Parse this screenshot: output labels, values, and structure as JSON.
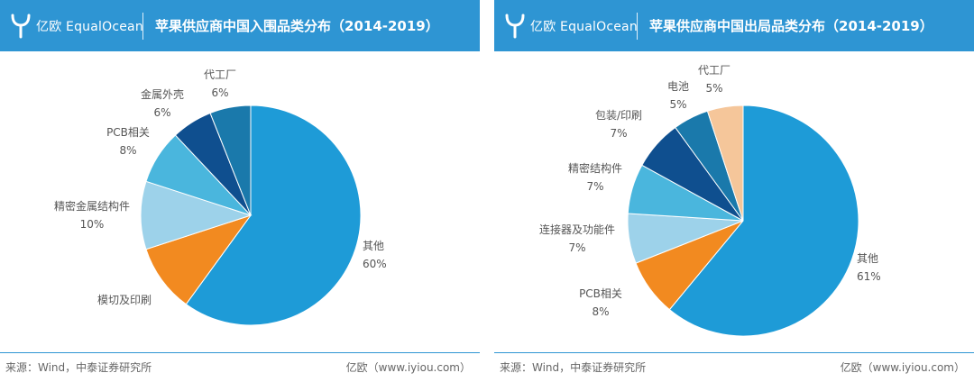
{
  "brand": {
    "name": "亿欧 EqualOcean"
  },
  "panels": [
    {
      "title": "苹果供应商中国入围品类分布（2014-2019）",
      "source": "来源：Wind，中泰证券研究所",
      "credit": "亿欧（www.iyiou.com）"
    },
    {
      "title": "苹果供应商中国出局品类分布（2014-2019）",
      "source": "来源：Wind，中泰证券研究所",
      "credit": "亿欧（www.iyiou.com）"
    }
  ],
  "colors": {
    "header": "#2e95d3",
    "slice_main": "#1e9bd7",
    "slice_orange": "#f28a20",
    "slice_pale": "#9dd2ea",
    "slice_light": "#4ab6dd",
    "slice_dark": "#0f4f8f",
    "slice_teal": "#1a79ab",
    "slice_peach": "#f5c69a"
  },
  "chart_data": [
    {
      "type": "pie",
      "title": "苹果供应商中国入围品类分布（2014-2019）",
      "slices": [
        {
          "label": "其他",
          "value": 60,
          "value_label": "60%",
          "color": "#1e9bd7"
        },
        {
          "label": "模切及印刷",
          "value": 10,
          "value_label": "",
          "color": "#f28a20"
        },
        {
          "label": "精密金属结构件",
          "value": 10,
          "value_label": "10%",
          "color": "#9dd2ea"
        },
        {
          "label": "PCB相关",
          "value": 8,
          "value_label": "8%",
          "color": "#4ab6dd"
        },
        {
          "label": "金属外壳",
          "value": 6,
          "value_label": "6%",
          "color": "#0f4f8f"
        },
        {
          "label": "代工厂",
          "value": 6,
          "value_label": "6%",
          "color": "#1a79ab"
        }
      ]
    },
    {
      "type": "pie",
      "title": "苹果供应商中国出局品类分布（2014-2019）",
      "slices": [
        {
          "label": "其他",
          "value": 61,
          "value_label": "61%",
          "color": "#1e9bd7"
        },
        {
          "label": "PCB相关",
          "value": 8,
          "value_label": "8%",
          "color": "#f28a20"
        },
        {
          "label": "连接器及功能件",
          "value": 7,
          "value_label": "7%",
          "color": "#9dd2ea"
        },
        {
          "label": "精密结构件",
          "value": 7,
          "value_label": "7%",
          "color": "#4ab6dd"
        },
        {
          "label": "包装/印刷",
          "value": 7,
          "value_label": "7%",
          "color": "#0f4f8f"
        },
        {
          "label": "电池",
          "value": 5,
          "value_label": "5%",
          "color": "#1a79ab"
        },
        {
          "label": "代工厂",
          "value": 5,
          "value_label": "5%",
          "color": "#f5c69a"
        }
      ]
    }
  ]
}
